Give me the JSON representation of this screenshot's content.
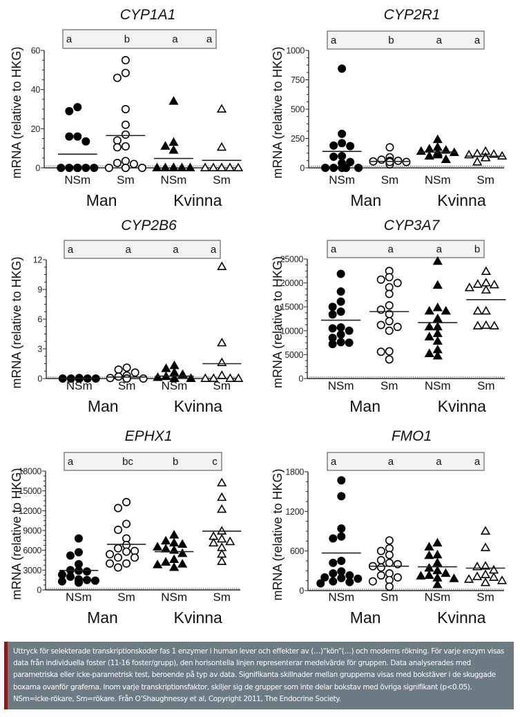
{
  "chart_data": [
    {
      "type": "scatter",
      "title": "CYP1A1",
      "ylabel": "mRNA (relative to HKG)",
      "ylim": [
        0,
        60
      ],
      "yticks": [
        "0",
        "20",
        "40",
        "60"
      ],
      "yticks_values": [
        0,
        20,
        40,
        60
      ],
      "categories": [
        "NSm",
        "Sm",
        "NSm",
        "Sm"
      ],
      "groups": [
        "Man",
        "Kvinna"
      ],
      "significance_letters": [
        "a",
        "b",
        "a",
        "a"
      ],
      "detection_limit": 1,
      "series": [
        {
          "name": "Man NSm",
          "marker": "filled-circle",
          "mean": 7,
          "values": [
            31,
            29,
            16,
            16,
            13.5,
            0,
            0,
            0,
            0,
            0,
            0,
            0,
            0,
            0,
            0
          ]
        },
        {
          "name": "Man Sm",
          "marker": "open-circle",
          "mean": 16.5,
          "values": [
            55,
            48.5,
            46,
            30,
            22,
            17,
            14,
            11,
            10.5,
            3.5,
            2.5,
            2,
            0,
            0,
            0,
            0
          ]
        },
        {
          "name": "Kvinna NSm",
          "marker": "filled-triangle",
          "mean": 4.8,
          "values": [
            34,
            13,
            11,
            9,
            0,
            0,
            0,
            0,
            0,
            0,
            0,
            0,
            0
          ]
        },
        {
          "name": "Kvinna Sm",
          "marker": "open-triangle",
          "mean": 3.8,
          "values": [
            30,
            10.5,
            0,
            0,
            0,
            0,
            0,
            0
          ]
        }
      ]
    },
    {
      "type": "scatter",
      "title": "CYP2R1",
      "ylabel": "mRNA (relative to HKG)",
      "ylim": [
        0,
        1000
      ],
      "yticks": [
        "0",
        "250",
        "500",
        "750",
        "1000"
      ],
      "yticks_values": [
        0,
        250,
        500,
        750,
        1000
      ],
      "categories": [
        "NSm",
        "Sm",
        "NSm",
        "Sm"
      ],
      "groups": [
        "Man",
        "Kvinna"
      ],
      "significance_letters": [
        "a",
        "b",
        "a",
        "a"
      ],
      "detection_limit": 15,
      "series": [
        {
          "name": "Man NSm",
          "marker": "filled-circle",
          "mean": 140,
          "values": [
            845,
            290,
            210,
            190,
            185,
            100,
            95,
            50,
            40,
            0,
            0,
            0,
            0,
            0
          ]
        },
        {
          "name": "Man Sm",
          "marker": "open-circle",
          "mean": 55,
          "values": [
            175,
            90,
            70,
            60,
            55,
            50,
            45,
            40,
            35,
            30,
            60,
            50
          ]
        },
        {
          "name": "Kvinna NSm",
          "marker": "filled-triangle",
          "mean": 135,
          "values": [
            240,
            175,
            160,
            150,
            140,
            130,
            120,
            110,
            100,
            70,
            130
          ]
        },
        {
          "name": "Kvinna Sm",
          "marker": "open-triangle",
          "mean": 100,
          "values": [
            140,
            120,
            115,
            110,
            100,
            90,
            85,
            50
          ]
        }
      ]
    },
    {
      "type": "scatter",
      "title": "CYP2B6",
      "ylabel": "mRNA (relative to HKG)",
      "ylim": [
        0,
        12
      ],
      "yticks": [
        "0",
        "3",
        "6",
        "9",
        "12"
      ],
      "yticks_values": [
        0,
        3,
        6,
        9,
        12
      ],
      "categories": [
        "NSm",
        "Sm",
        "NSm",
        "Sm"
      ],
      "groups": [
        "Man",
        "Kvinna"
      ],
      "significance_letters": [
        "a",
        "a",
        "a",
        "a"
      ],
      "detection_limit": 0.15,
      "series": [
        {
          "name": "Man NSm",
          "marker": "filled-circle",
          "mean": 0.02,
          "values": [
            0.05,
            0,
            0,
            0,
            0,
            0,
            0,
            0,
            0,
            0,
            0,
            0
          ]
        },
        {
          "name": "Man Sm",
          "marker": "open-circle",
          "mean": 0.15,
          "values": [
            1.1,
            0.9,
            0.6,
            0.3,
            0.2,
            0.05,
            0,
            0,
            0,
            0,
            0,
            0
          ]
        },
        {
          "name": "Kvinna NSm",
          "marker": "filled-triangle",
          "mean": 0.25,
          "values": [
            1.3,
            1.0,
            0.6,
            0.4,
            0.2,
            0.1,
            0,
            0,
            0,
            0,
            0,
            0
          ]
        },
        {
          "name": "Kvinna Sm",
          "marker": "open-triangle",
          "mean": 1.5,
          "values": [
            11.3,
            3.6,
            1.6,
            0.3,
            0,
            0,
            0,
            0
          ]
        }
      ]
    },
    {
      "type": "scatter",
      "title": "CYP3A7",
      "ylabel": "mRNA (relative to HKG)",
      "ylim": [
        0,
        25000
      ],
      "yticks": [
        "0",
        "5000",
        "10000",
        "15000",
        "20000",
        "25000"
      ],
      "yticks_values": [
        0,
        5000,
        10000,
        15000,
        20000,
        25000
      ],
      "categories": [
        "NSm",
        "Sm",
        "NSm",
        "Sm"
      ],
      "groups": [
        "Man",
        "Kvinna"
      ],
      "significance_letters": [
        "a",
        "a",
        "a",
        "b"
      ],
      "detection_limit": 300,
      "series": [
        {
          "name": "Man NSm",
          "marker": "filled-circle",
          "mean": 12200,
          "values": [
            21900,
            18200,
            16100,
            15000,
            14000,
            13400,
            10700,
            10500,
            10000,
            9200,
            8500,
            7600,
            7500,
            7200
          ]
        },
        {
          "name": "Man Sm",
          "marker": "open-circle",
          "mean": 14000,
          "values": [
            22500,
            21200,
            20700,
            20000,
            19100,
            17700,
            15300,
            14400,
            13500,
            12000,
            11200,
            10800,
            10000,
            5700,
            5600,
            4000
          ]
        },
        {
          "name": "Kvinna NSm",
          "marker": "filled-triangle",
          "mean": 11700,
          "values": [
            24500,
            19500,
            14800,
            14100,
            14100,
            12500,
            10800,
            10800,
            9400,
            8700,
            7800,
            6000,
            5200,
            4700
          ]
        },
        {
          "name": "Kvinna Sm",
          "marker": "open-triangle",
          "mean": 16500,
          "values": [
            22400,
            20000,
            19700,
            19600,
            19000,
            18500,
            14100,
            14100,
            11100,
            11000,
            11000
          ]
        }
      ]
    },
    {
      "type": "scatter",
      "title": "EPHX1",
      "ylabel": "mRNA (relative to HKG)",
      "ylim": [
        0,
        18000
      ],
      "yticks": [
        "0",
        "3000",
        "6000",
        "9000",
        "12000",
        "15000",
        "18000"
      ],
      "yticks_values": [
        0,
        3000,
        6000,
        9000,
        12000,
        15000,
        18000
      ],
      "categories": [
        "NSm",
        "Sm",
        "NSm",
        "Sm"
      ],
      "groups": [
        "Man",
        "Kvinna"
      ],
      "significance_letters": [
        "a",
        "bc",
        "b",
        "c"
      ],
      "detection_limit": 200,
      "series": [
        {
          "name": "Man NSm",
          "marker": "filled-circle",
          "mean": 2950,
          "values": [
            7800,
            5700,
            5200,
            3900,
            3000,
            2900,
            2800,
            2300,
            2000,
            1600,
            1500,
            1400,
            1300,
            1200,
            1100
          ]
        },
        {
          "name": "Man Sm",
          "marker": "open-circle",
          "mean": 6900,
          "values": [
            13300,
            12400,
            10000,
            9100,
            7800,
            6800,
            6300,
            5900,
            5800,
            5400,
            4900,
            4900,
            4000,
            4000,
            3400
          ]
        },
        {
          "name": "Kvinna NSm",
          "marker": "filled-triangle",
          "mean": 5800,
          "values": [
            8300,
            7400,
            7100,
            6900,
            6500,
            6200,
            6000,
            5500,
            4600,
            4200,
            3900,
            3800,
            3400
          ]
        },
        {
          "name": "Kvinna Sm",
          "marker": "open-triangle",
          "mean": 8900,
          "values": [
            16200,
            14000,
            12200,
            8900,
            8100,
            7700,
            7300,
            7100,
            6400,
            5400,
            4300
          ]
        }
      ]
    },
    {
      "type": "scatter",
      "title": "FMO1",
      "ylabel": "mRNA (relative to HKG)",
      "ylim": [
        0,
        1800
      ],
      "yticks": [
        "0",
        "600",
        "1200",
        "1800"
      ],
      "yticks_values": [
        0,
        600,
        1200,
        1800
      ],
      "categories": [
        "NSm",
        "Sm",
        "NSm",
        "Sm"
      ],
      "groups": [
        "Man",
        "Kvinna"
      ],
      "significance_letters": [
        "a",
        "a",
        "a",
        "a"
      ],
      "detection_limit": 20,
      "series": [
        {
          "name": "Man NSm",
          "marker": "filled-circle",
          "mean": 570,
          "values": [
            1670,
            1430,
            940,
            820,
            790,
            450,
            420,
            290,
            260,
            230,
            200,
            190,
            180,
            140,
            130,
            110
          ]
        },
        {
          "name": "Man Sm",
          "marker": "open-circle",
          "mean": 370,
          "values": [
            760,
            640,
            600,
            540,
            460,
            420,
            400,
            370,
            350,
            260,
            230,
            200,
            160,
            140,
            60
          ]
        },
        {
          "name": "Kvinna NSm",
          "marker": "filled-triangle",
          "mean": 360,
          "values": [
            720,
            660,
            540,
            530,
            420,
            340,
            300,
            260,
            230,
            220,
            190,
            180,
            90
          ]
        },
        {
          "name": "Kvinna Sm",
          "marker": "open-triangle",
          "mean": 340,
          "values": [
            900,
            650,
            370,
            360,
            310,
            240,
            210,
            200,
            170,
            150,
            120
          ]
        }
      ]
    }
  ],
  "caption": "Uttryck för selekterade transkriptionskoder fas 1 enzymer i human lever och effekter av (…)”kön”(…) och moderns rökning. För varje enzym visas data från individuella foster (11-16 foster/grupp), den horisontella linjen representerar medelvärde för gruppen. Data analyserades med parametriska eller icke-parametrisk test, beroende på typ av data. Signifikanta skillnader mellan grupperna visas med bokstäver i de skuggade boxarna ovanför graferna. Inom varje transkriptionsfaktor, skiljer sig de grupper som inte delar bokstav med övriga signifikant (p<0.05). NSm=icke-rökare, Sm=rökare. Från O’Shaughnessy et al, Copyright 2011, The Endocrine Society.",
  "colors": {
    "caption_bg": "#6d7b85",
    "caption_accent": "#8b1a1a",
    "letter_box_bg": "#f2f2f2",
    "ink": "#000000"
  }
}
